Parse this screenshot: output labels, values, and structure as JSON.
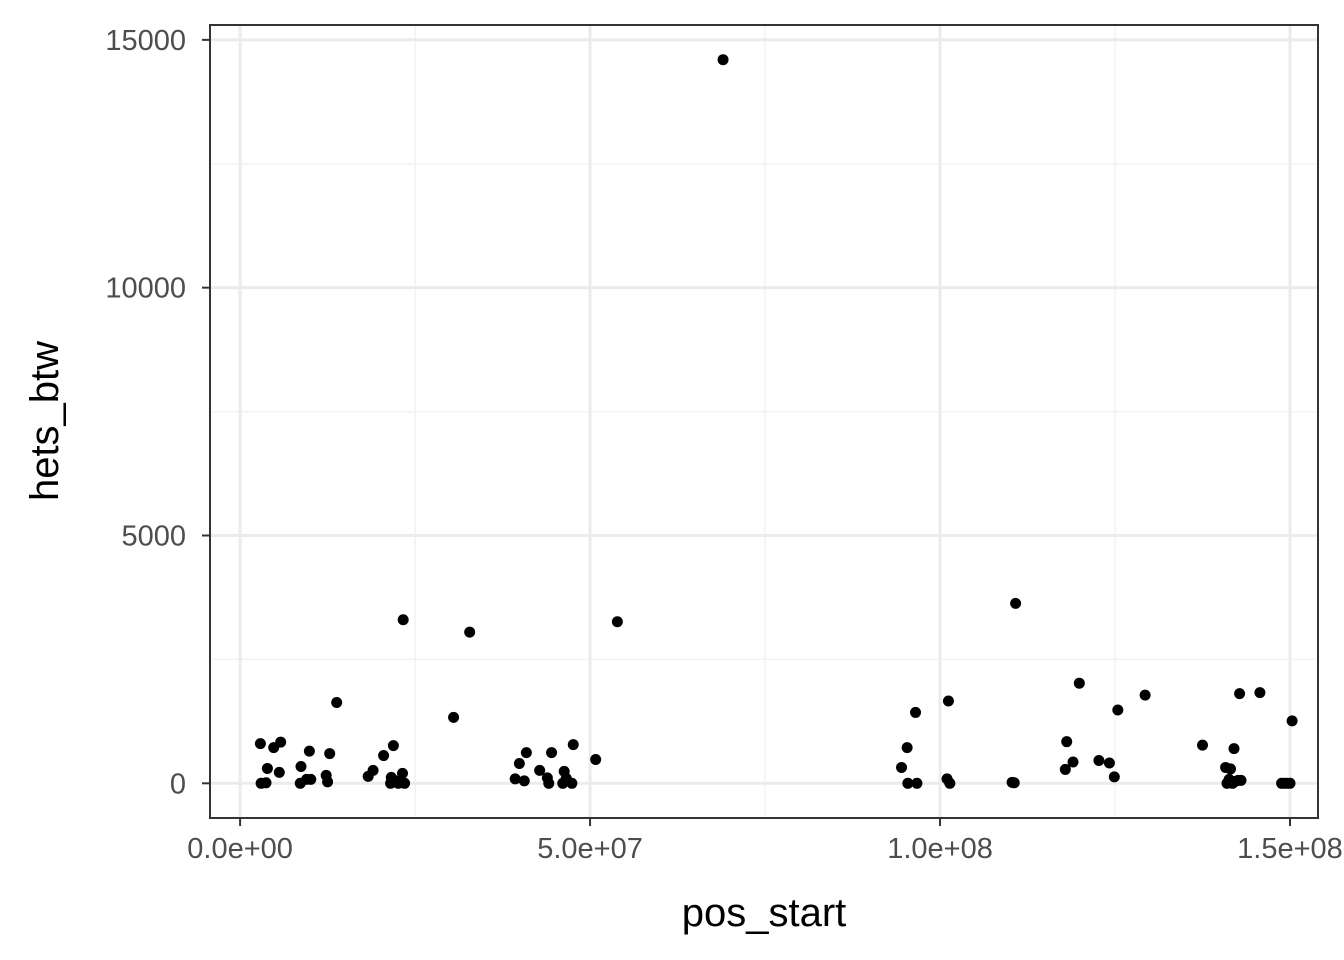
{
  "chart_data": {
    "type": "scatter",
    "xlabel": "pos_start",
    "ylabel": "hets_btw",
    "xlim": [
      -4300000,
      154000000
    ],
    "ylim": [
      -700,
      15300
    ],
    "x_ticks": [
      0,
      50000000,
      100000000,
      150000000
    ],
    "x_tick_labels": [
      "0.0e+00",
      "5.0e+07",
      "1.0e+08",
      "1.5e+08"
    ],
    "y_ticks": [
      0,
      5000,
      10000,
      15000
    ],
    "y_tick_labels": [
      "0",
      "5000",
      "10000",
      "15000"
    ],
    "grid": true,
    "theme": "bw",
    "point_color": "#000000",
    "points": [
      {
        "x": 2900000,
        "y": 800
      },
      {
        "x": 3000000,
        "y": 0
      },
      {
        "x": 3700000,
        "y": 10
      },
      {
        "x": 3900000,
        "y": 300
      },
      {
        "x": 4800000,
        "y": 720
      },
      {
        "x": 5600000,
        "y": 220
      },
      {
        "x": 5800000,
        "y": 830
      },
      {
        "x": 8600000,
        "y": 0
      },
      {
        "x": 8700000,
        "y": 340
      },
      {
        "x": 9500000,
        "y": 80
      },
      {
        "x": 9900000,
        "y": 650
      },
      {
        "x": 10100000,
        "y": 80
      },
      {
        "x": 12300000,
        "y": 160
      },
      {
        "x": 12500000,
        "y": 30
      },
      {
        "x": 12800000,
        "y": 600
      },
      {
        "x": 13800000,
        "y": 1630
      },
      {
        "x": 18300000,
        "y": 140
      },
      {
        "x": 19000000,
        "y": 260
      },
      {
        "x": 20500000,
        "y": 560
      },
      {
        "x": 21500000,
        "y": 0
      },
      {
        "x": 21600000,
        "y": 120
      },
      {
        "x": 21900000,
        "y": 760
      },
      {
        "x": 22200000,
        "y": 50
      },
      {
        "x": 22600000,
        "y": 0
      },
      {
        "x": 23200000,
        "y": 200
      },
      {
        "x": 23300000,
        "y": 3300
      },
      {
        "x": 23500000,
        "y": 0
      },
      {
        "x": 30500000,
        "y": 1330
      },
      {
        "x": 32800000,
        "y": 3050
      },
      {
        "x": 39300000,
        "y": 90
      },
      {
        "x": 39900000,
        "y": 400
      },
      {
        "x": 40600000,
        "y": 50
      },
      {
        "x": 40900000,
        "y": 620
      },
      {
        "x": 42800000,
        "y": 260
      },
      {
        "x": 43900000,
        "y": 110
      },
      {
        "x": 44100000,
        "y": 0
      },
      {
        "x": 44500000,
        "y": 620
      },
      {
        "x": 46100000,
        "y": 0
      },
      {
        "x": 46300000,
        "y": 240
      },
      {
        "x": 46600000,
        "y": 100
      },
      {
        "x": 47400000,
        "y": 0
      },
      {
        "x": 47600000,
        "y": 780
      },
      {
        "x": 50800000,
        "y": 480
      },
      {
        "x": 53900000,
        "y": 3260
      },
      {
        "x": 69000000,
        "y": 14600
      },
      {
        "x": 94500000,
        "y": 320
      },
      {
        "x": 95300000,
        "y": 720
      },
      {
        "x": 95400000,
        "y": 0
      },
      {
        "x": 96500000,
        "y": 1430
      },
      {
        "x": 96700000,
        "y": 0
      },
      {
        "x": 101000000,
        "y": 90
      },
      {
        "x": 101200000,
        "y": 1660
      },
      {
        "x": 101400000,
        "y": 0
      },
      {
        "x": 110300000,
        "y": 20
      },
      {
        "x": 110600000,
        "y": 10
      },
      {
        "x": 110800000,
        "y": 3630
      },
      {
        "x": 117900000,
        "y": 280
      },
      {
        "x": 118100000,
        "y": 840
      },
      {
        "x": 119000000,
        "y": 430
      },
      {
        "x": 119900000,
        "y": 2020
      },
      {
        "x": 122700000,
        "y": 460
      },
      {
        "x": 124200000,
        "y": 410
      },
      {
        "x": 124900000,
        "y": 130
      },
      {
        "x": 125400000,
        "y": 1480
      },
      {
        "x": 129300000,
        "y": 1780
      },
      {
        "x": 137500000,
        "y": 770
      },
      {
        "x": 140800000,
        "y": 320
      },
      {
        "x": 141000000,
        "y": 0
      },
      {
        "x": 141300000,
        "y": 80
      },
      {
        "x": 141500000,
        "y": 290
      },
      {
        "x": 141800000,
        "y": 0
      },
      {
        "x": 142000000,
        "y": 700
      },
      {
        "x": 142200000,
        "y": 40
      },
      {
        "x": 142600000,
        "y": 60
      },
      {
        "x": 142800000,
        "y": 1810
      },
      {
        "x": 143000000,
        "y": 60
      },
      {
        "x": 145700000,
        "y": 1830
      },
      {
        "x": 148800000,
        "y": 0
      },
      {
        "x": 149200000,
        "y": 0
      },
      {
        "x": 149600000,
        "y": 0
      },
      {
        "x": 150000000,
        "y": 0
      },
      {
        "x": 150300000,
        "y": 1260
      }
    ]
  }
}
